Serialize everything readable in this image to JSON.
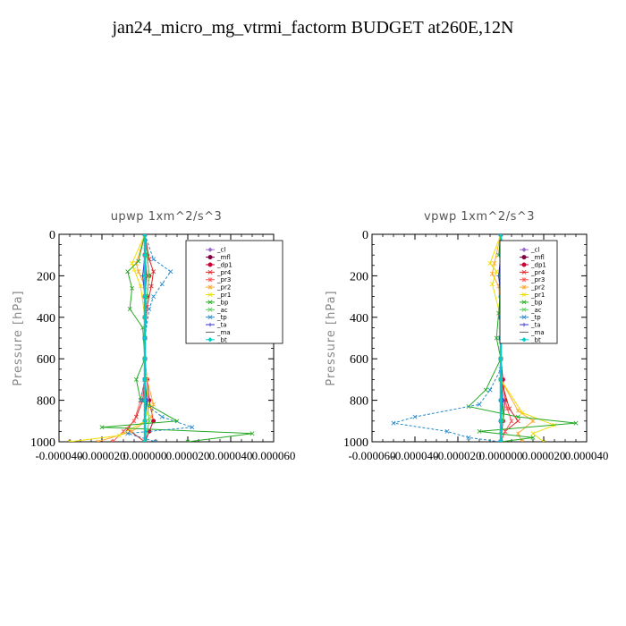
{
  "title": "jan24_micro_mg_vtrmi_factorm  BUDGET at260E,12N",
  "legend_entries": [
    "_cl",
    "_mfl",
    "_dp1",
    "_pr4",
    "_pr3",
    "_pr2",
    "_pr1",
    "_bp",
    "_ac",
    "_tp",
    "_ta",
    "_ma",
    "_bt"
  ],
  "series_colors": {
    "_cl": "#9966cc",
    "_mfl": "#800040",
    "_dp1": "#cc0033",
    "_pr4": "#dd2222",
    "_pr3": "#ff5555",
    "_pr2": "#ffaa33",
    "_pr1": "#eedd00",
    "_bp": "#22aa22",
    "_ac": "#55cc55",
    "_tp": "#2288cc",
    "_ta": "#3333cc",
    "_ma": "#666666",
    "_bt": "#00cccc"
  },
  "chart_data": [
    {
      "type": "line",
      "title": "upwp   1xm^2/s^3",
      "xlabel": "",
      "ylabel": "Pressure [hPa]",
      "xlim": [
        -4e-05,
        6e-05
      ],
      "ylim": [
        1000,
        0
      ],
      "x_ticks": [
        "-0.000040",
        "-0.000020",
        "0.000000",
        "0.000020",
        "0.000040",
        "0.000060"
      ],
      "x_tick_values": [
        -4e-05,
        -2e-05,
        0,
        2e-05,
        4e-05,
        6e-05
      ],
      "y_ticks": [
        "0",
        "200",
        "400",
        "600",
        "800",
        "1000"
      ],
      "y_tick_values": [
        0,
        200,
        400,
        600,
        800,
        1000
      ],
      "legend_position": "top-right",
      "series": [
        {
          "name": "_cl",
          "x": [
            0,
            0,
            0,
            0,
            0,
            0,
            0,
            0,
            0,
            0,
            0
          ],
          "y": [
            0,
            100,
            200,
            300,
            400,
            500,
            600,
            700,
            800,
            900,
            1000
          ]
        },
        {
          "name": "_mfl",
          "x": [
            0,
            0,
            5e-07,
            0,
            0,
            0,
            0,
            0,
            0,
            0,
            0
          ],
          "y": [
            0,
            100,
            200,
            300,
            400,
            500,
            600,
            700,
            800,
            900,
            1000
          ]
        },
        {
          "name": "_dp1",
          "x": [
            0,
            1e-06,
            2e-06,
            1e-06,
            0,
            0,
            0,
            1e-06,
            2e-06,
            4e-06,
            2e-06,
            0
          ],
          "y": [
            0,
            100,
            200,
            300,
            400,
            500,
            600,
            700,
            800,
            900,
            950,
            1000
          ]
        },
        {
          "name": "_pr4",
          "x": [
            0,
            2e-06,
            4e-06,
            3e-06,
            1e-06,
            0,
            0,
            0,
            -1e-06,
            -4e-06,
            -8e-06,
            0
          ],
          "y": [
            0,
            120,
            180,
            250,
            350,
            500,
            600,
            700,
            800,
            880,
            940,
            1000
          ]
        },
        {
          "name": "_pr3",
          "x": [
            0,
            0,
            1e-06,
            0,
            0,
            0,
            0,
            0,
            -2e-06,
            -5e-06,
            -1e-05,
            -1.5e-05
          ],
          "y": [
            0,
            100,
            200,
            300,
            400,
            500,
            600,
            700,
            800,
            900,
            950,
            1000
          ]
        },
        {
          "name": "_pr2",
          "x": [
            0,
            -4e-06,
            -3e-06,
            0,
            0,
            0,
            0,
            1e-06,
            4e-06,
            3e-06,
            -6e-06,
            -2.2e-05
          ],
          "y": [
            0,
            140,
            180,
            250,
            400,
            500,
            600,
            700,
            820,
            880,
            950,
            1000
          ]
        },
        {
          "name": "_pr1",
          "x": [
            0,
            -6e-06,
            -5e-06,
            -2e-06,
            0,
            0,
            0,
            0,
            2e-06,
            0,
            -1.2e-05,
            -3.5e-05
          ],
          "y": [
            0,
            140,
            170,
            250,
            400,
            500,
            600,
            700,
            830,
            900,
            970,
            1000
          ]
        },
        {
          "name": "_bp",
          "x": [
            0,
            -3e-06,
            -8e-06,
            -6e-06,
            -7e-06,
            -1e-06,
            0,
            -4e-06,
            -2e-06,
            1.5e-05,
            -2e-05,
            5e-05,
            2e-05
          ],
          "y": [
            0,
            130,
            180,
            260,
            360,
            450,
            600,
            700,
            800,
            900,
            930,
            960,
            1000
          ]
        },
        {
          "name": "_ac",
          "x": [
            0,
            1e-06,
            2e-06,
            1e-06,
            0,
            0,
            0,
            0,
            1e-06,
            2e-06,
            1e-06,
            0
          ],
          "y": [
            0,
            100,
            200,
            300,
            400,
            500,
            600,
            700,
            800,
            900,
            950,
            1000
          ]
        },
        {
          "name": "_tp",
          "x": [
            0,
            4e-06,
            1.2e-05,
            8e-06,
            4e-06,
            2e-06,
            0,
            0,
            -2e-06,
            8e-06,
            2.2e-05,
            -8e-06,
            5e-06
          ],
          "y": [
            0,
            120,
            180,
            240,
            300,
            360,
            500,
            700,
            800,
            880,
            930,
            960,
            1000
          ]
        },
        {
          "name": "_ta",
          "x": [
            0,
            0,
            -1e-06,
            0,
            0,
            0,
            0,
            0,
            1e-06,
            0,
            0
          ],
          "y": [
            0,
            100,
            200,
            300,
            400,
            500,
            600,
            700,
            800,
            900,
            1000
          ]
        },
        {
          "name": "_ma",
          "x": [
            0,
            0,
            0,
            0,
            0,
            0,
            0,
            0,
            0,
            0,
            0
          ],
          "y": [
            0,
            100,
            200,
            300,
            400,
            500,
            600,
            700,
            800,
            900,
            1000
          ]
        },
        {
          "name": "_bt",
          "x": [
            0,
            0,
            0,
            0,
            0,
            0,
            0,
            0,
            0,
            0,
            0
          ],
          "y": [
            0,
            100,
            200,
            300,
            400,
            500,
            600,
            700,
            800,
            900,
            1000
          ]
        }
      ]
    },
    {
      "type": "line",
      "title": "vpwp   1xm^2/s^3",
      "xlabel": "",
      "ylabel": "Pressure [hPa]",
      "xlim": [
        -6e-05,
        4e-05
      ],
      "ylim": [
        1000,
        0
      ],
      "x_ticks": [
        "-0.000060",
        "-0.000040",
        "-0.000020",
        "0.000000",
        "0.000020",
        "0.000040"
      ],
      "x_tick_values": [
        -6e-05,
        -4e-05,
        -2e-05,
        0,
        2e-05,
        4e-05
      ],
      "y_ticks": [
        "0",
        "200",
        "400",
        "600",
        "800",
        "1000"
      ],
      "y_tick_values": [
        0,
        200,
        400,
        600,
        800,
        1000
      ],
      "legend_position": "top-right",
      "series": [
        {
          "name": "_cl",
          "x": [
            0,
            0,
            0,
            0,
            0,
            0,
            0,
            0,
            0,
            0,
            0
          ],
          "y": [
            0,
            100,
            200,
            300,
            400,
            500,
            600,
            700,
            800,
            900,
            1000
          ]
        },
        {
          "name": "_mfl",
          "x": [
            0,
            0,
            5e-07,
            0,
            0,
            0,
            0,
            0,
            0,
            0,
            0
          ],
          "y": [
            0,
            100,
            200,
            300,
            400,
            500,
            600,
            700,
            800,
            900,
            1000
          ]
        },
        {
          "name": "_dp1",
          "x": [
            0,
            1e-06,
            2e-06,
            0,
            0,
            0,
            0,
            1e-06,
            2e-06,
            1e-06,
            0
          ],
          "y": [
            0,
            100,
            200,
            300,
            400,
            500,
            600,
            700,
            800,
            900,
            1000
          ]
        },
        {
          "name": "_pr4",
          "x": [
            0,
            2e-06,
            4e-06,
            1e-06,
            0,
            0,
            0,
            0,
            4e-06,
            8e-06,
            2e-06,
            0
          ],
          "y": [
            0,
            150,
            200,
            280,
            400,
            500,
            600,
            700,
            840,
            900,
            950,
            1000
          ]
        },
        {
          "name": "_pr3",
          "x": [
            0,
            1e-06,
            2e-06,
            0,
            0,
            0,
            0,
            0,
            3e-06,
            5e-06,
            2e-06,
            0
          ],
          "y": [
            0,
            130,
            190,
            260,
            400,
            500,
            600,
            700,
            840,
            900,
            950,
            1000
          ]
        },
        {
          "name": "_pr2",
          "x": [
            0,
            -3e-06,
            -4e-06,
            -1e-06,
            0,
            0,
            0,
            0,
            8e-06,
            1.5e-05,
            8e-06,
            1e-05
          ],
          "y": [
            0,
            140,
            190,
            250,
            400,
            500,
            600,
            700,
            850,
            900,
            960,
            1000
          ]
        },
        {
          "name": "_pr1",
          "x": [
            0,
            -5e-06,
            -2e-06,
            -4e-06,
            0,
            0,
            0,
            0,
            1e-05,
            2.5e-05,
            1.5e-05,
            2e-05
          ],
          "y": [
            0,
            140,
            180,
            240,
            400,
            500,
            600,
            700,
            860,
            920,
            960,
            1000
          ]
        },
        {
          "name": "_bp",
          "x": [
            0,
            -1e-06,
            2e-06,
            0,
            -1e-06,
            -2e-06,
            0,
            -7e-06,
            -1.5e-05,
            8e-06,
            3.5e-05,
            -1e-05,
            1.5e-05,
            0
          ],
          "y": [
            0,
            100,
            160,
            250,
            380,
            500,
            600,
            750,
            830,
            880,
            910,
            950,
            980,
            1000
          ]
        },
        {
          "name": "_ac",
          "x": [
            0,
            0,
            1e-06,
            0,
            0,
            0,
            0,
            0,
            1e-06,
            1e-06,
            0,
            0
          ],
          "y": [
            0,
            100,
            200,
            300,
            400,
            500,
            600,
            700,
            800,
            900,
            950,
            1000
          ]
        },
        {
          "name": "_tp",
          "x": [
            0,
            2e-06,
            6e-06,
            2e-06,
            0,
            0,
            0,
            -5e-06,
            -1e-05,
            -4e-05,
            -5e-05,
            -2.5e-05,
            -1.5e-05,
            0
          ],
          "y": [
            0,
            130,
            180,
            250,
            400,
            500,
            650,
            750,
            820,
            880,
            910,
            950,
            980,
            1000
          ]
        },
        {
          "name": "_ta",
          "x": [
            0,
            0,
            -1e-06,
            0,
            0,
            0,
            0,
            0,
            1e-06,
            0,
            0
          ],
          "y": [
            0,
            100,
            200,
            300,
            400,
            500,
            600,
            700,
            800,
            900,
            1000
          ]
        },
        {
          "name": "_ma",
          "x": [
            0,
            0,
            0,
            0,
            0,
            0,
            0,
            0,
            0,
            0,
            0
          ],
          "y": [
            0,
            100,
            200,
            300,
            400,
            500,
            600,
            700,
            800,
            900,
            1000
          ]
        },
        {
          "name": "_bt",
          "x": [
            0,
            0,
            0,
            0,
            0,
            0,
            0,
            0,
            0,
            0,
            0
          ],
          "y": [
            0,
            100,
            200,
            300,
            400,
            500,
            600,
            700,
            800,
            900,
            1000
          ]
        }
      ]
    }
  ]
}
